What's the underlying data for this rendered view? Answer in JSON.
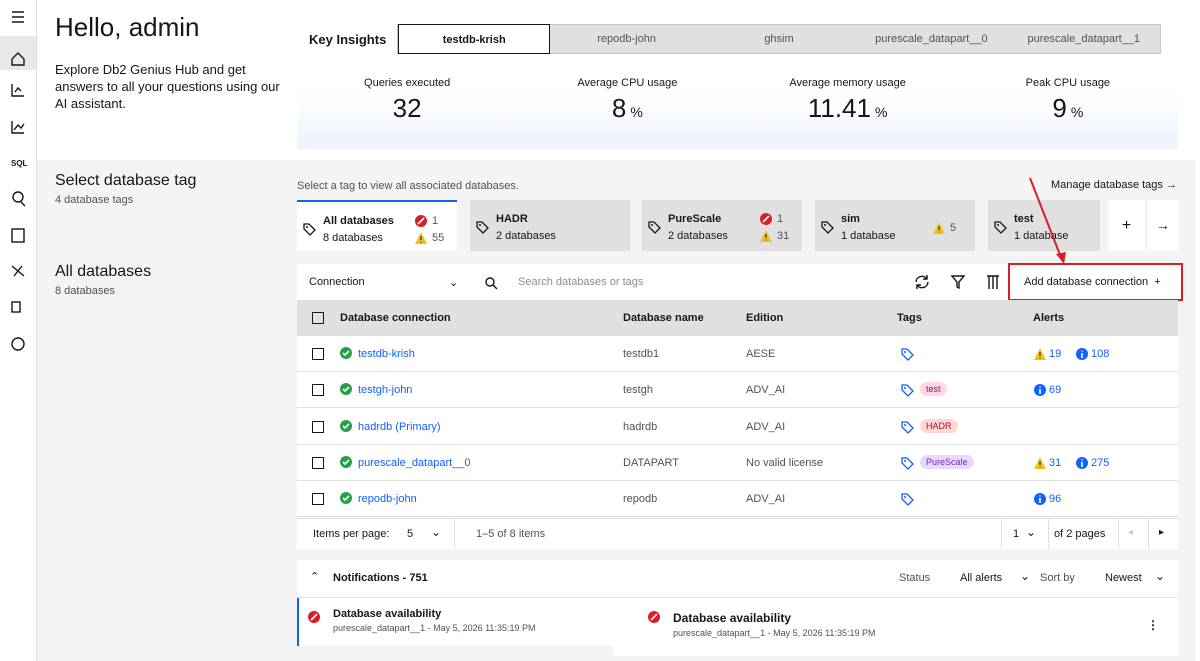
{
  "header": {
    "greeting": "Hello, admin",
    "description": "Explore Db2 Genius Hub and get answers to all your questions using our AI assistant."
  },
  "insights": {
    "title": "Key Insights",
    "tabs": [
      "testdb-krish",
      "repodb-john",
      "ghsim",
      "purescale_datapart__0",
      "purescale_datapart__1"
    ],
    "metrics": [
      {
        "label": "Queries executed",
        "value": 32
      },
      {
        "label": "Average CPU usage",
        "value": 8,
        "unit": "%"
      },
      {
        "label": "Average memory usage",
        "value": 11.41,
        "unit": "%"
      },
      {
        "label": "Peak CPU usage",
        "value": 9,
        "unit": "%"
      }
    ]
  },
  "tags": {
    "title": "Select database tag",
    "count_label": "4 database tags",
    "hint": "Select a tag to view all associated databases.",
    "manage_link": "Manage database tags",
    "cards": [
      {
        "name": "All databases",
        "count": "8 databases",
        "errors": 1,
        "warnings": 55
      },
      {
        "name": "HADR",
        "count": "2 databases"
      },
      {
        "name": "PureScale",
        "count": "2 databases",
        "errors": 1,
        "warnings": 31
      },
      {
        "name": "sim",
        "count": "1 database",
        "warnings": 5
      },
      {
        "name": "test",
        "count": "1 database"
      }
    ]
  },
  "databases": {
    "title": "All databases",
    "count_label": "8 databases",
    "filter": "Connection",
    "search_placeholder": "Search databases or tags",
    "add_button": "Add database connection",
    "columns": [
      "Database connection",
      "Database name",
      "Edition",
      "Tags",
      "Alerts"
    ],
    "rows": [
      {
        "connection": "testdb-krish",
        "database": "testdb1",
        "edition": "AESE",
        "warnings": 19,
        "info": 108
      },
      {
        "connection": "testgh-john",
        "database": "testgh",
        "edition": "ADV_AI",
        "tag": "test",
        "info": 69
      },
      {
        "connection": "hadrdb (Primary)",
        "database": "hadrdb",
        "edition": "ADV_AI",
        "tag": "HADR"
      },
      {
        "connection": "purescale_datapart__0",
        "database": "DATAPART",
        "edition": "No valid license",
        "tag": "PureScale",
        "warnings": 31,
        "info": 275
      },
      {
        "connection": "repodb-john",
        "database": "repodb",
        "edition": "ADV_AI",
        "info": 96
      }
    ]
  },
  "pagination": {
    "items_per_page_label": "Items per page:",
    "items_per_page": 5,
    "range": "1–5 of 8 items",
    "page": 1,
    "pages_label": "of 2 pages"
  },
  "notifications": {
    "title": "Notifications - 751",
    "status_label": "Status",
    "status_value": "All alerts",
    "sort_label": "Sort by",
    "sort_value": "Newest",
    "items": [
      {
        "title": "Database availability",
        "detail": "purescale_datapart__1 - May 5, 2026 11:35:19 PM"
      },
      {
        "title": "Database availability",
        "detail": "purescale_datapart__1 - May 5, 2026 11:35:19 PM"
      }
    ]
  }
}
